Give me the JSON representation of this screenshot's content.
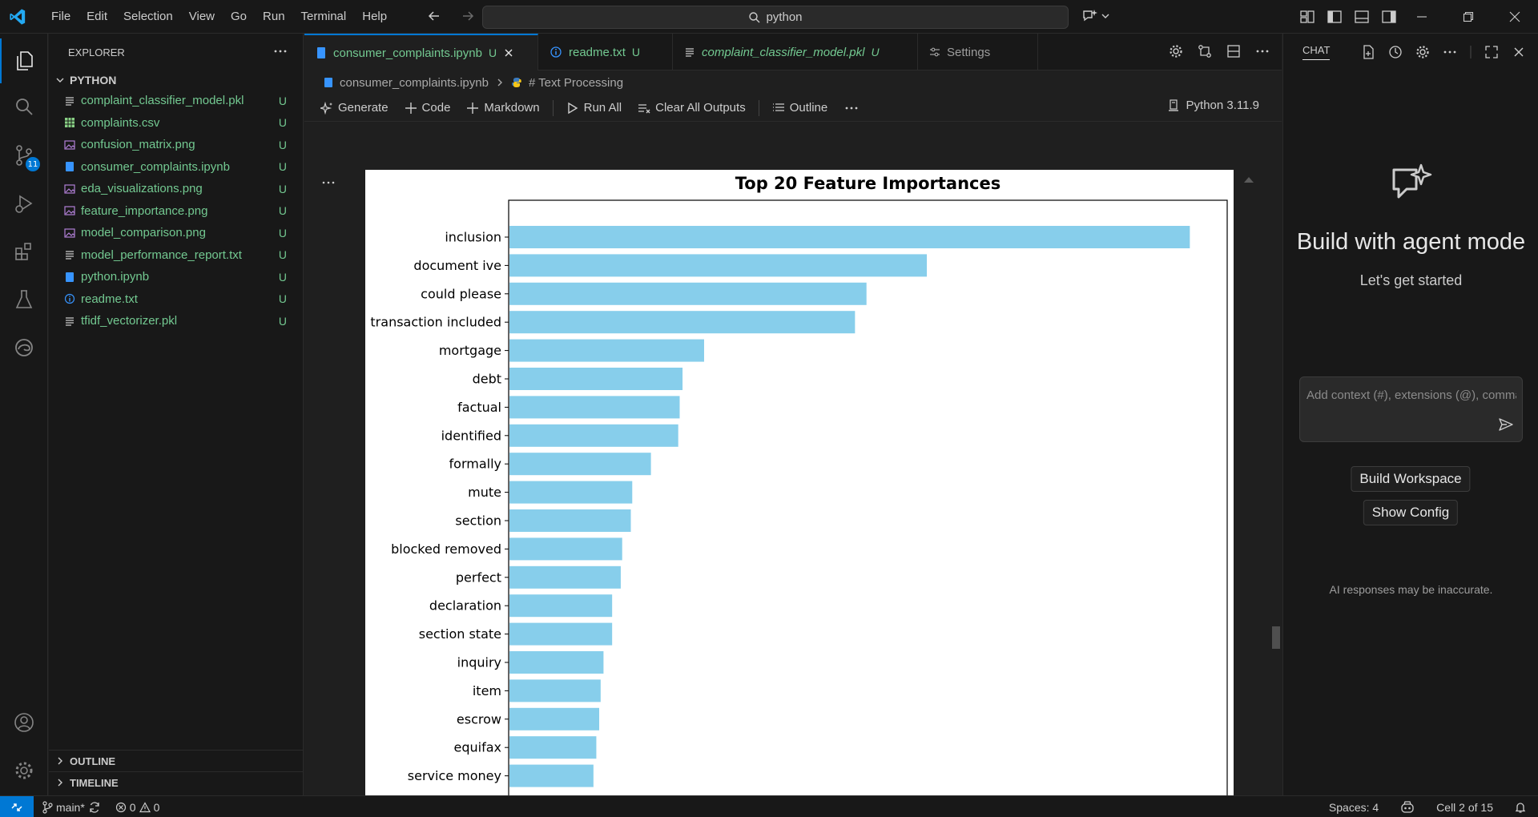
{
  "titlebar": {
    "menu": [
      "File",
      "Edit",
      "Selection",
      "View",
      "Go",
      "Run",
      "Terminal",
      "Help"
    ],
    "search_text": "python"
  },
  "activity": {
    "scm_badge": "11"
  },
  "sidebar": {
    "title": "EXPLORER",
    "folder": "PYTHON",
    "files": [
      {
        "name": "complaint_classifier_model.pkl",
        "status": "U",
        "icon": "file-lines-icon"
      },
      {
        "name": "complaints.csv",
        "status": "U",
        "icon": "table-icon"
      },
      {
        "name": "confusion_matrix.png",
        "status": "U",
        "icon": "image-icon"
      },
      {
        "name": "consumer_complaints.ipynb",
        "status": "U",
        "icon": "notebook-icon"
      },
      {
        "name": "eda_visualizations.png",
        "status": "U",
        "icon": "image-icon"
      },
      {
        "name": "feature_importance.png",
        "status": "U",
        "icon": "image-icon"
      },
      {
        "name": "model_comparison.png",
        "status": "U",
        "icon": "image-icon"
      },
      {
        "name": "model_performance_report.txt",
        "status": "U",
        "icon": "file-lines-icon"
      },
      {
        "name": "python.ipynb",
        "status": "U",
        "icon": "notebook-icon"
      },
      {
        "name": "readme.txt",
        "status": "U",
        "icon": "info-icon"
      },
      {
        "name": "tfidf_vectorizer.pkl",
        "status": "U",
        "icon": "file-lines-icon"
      }
    ],
    "outline_label": "OUTLINE",
    "timeline_label": "TIMELINE"
  },
  "editor": {
    "tabs": [
      {
        "label": "consumer_complaints.ipynb",
        "status": "U",
        "active": true
      },
      {
        "label": "readme.txt",
        "status": "U",
        "active": false
      },
      {
        "label": "complaint_classifier_model.pkl",
        "status": "U",
        "active": false
      },
      {
        "label": "Settings",
        "status": "",
        "active": false
      }
    ],
    "breadcrumb": {
      "file": "consumer_complaints.ipynb",
      "section": "# Text Processing"
    },
    "toolbar": {
      "generate": "Generate",
      "code": "Code",
      "markdown": "Markdown",
      "run_all": "Run All",
      "clear_outputs": "Clear All Outputs",
      "outline": "Outline",
      "kernel": "Python 3.11.9"
    }
  },
  "chart_data": {
    "type": "bar",
    "orientation": "horizontal",
    "title": "Top 20 Feature Importances",
    "categories": [
      "inclusion",
      "document ive",
      "could please",
      "transaction included",
      "mortgage",
      "debt",
      "factual",
      "identified",
      "formally",
      "mute",
      "section",
      "blocked removed",
      "perfect",
      "declaration",
      "section state",
      "inquiry",
      "item",
      "escrow",
      "equifax",
      "service money"
    ],
    "values": [
      0.0474,
      0.0291,
      0.0249,
      0.0241,
      0.0136,
      0.0121,
      0.0119,
      0.0118,
      0.0099,
      0.0086,
      0.0085,
      0.0079,
      0.0078,
      0.0072,
      0.0072,
      0.0066,
      0.0064,
      0.0063,
      0.0061,
      0.0059
    ],
    "xlim": [
      0,
      0.05
    ],
    "xticks": [
      "0.00",
      "0.01",
      "0.02",
      "0.03",
      "0.04"
    ],
    "color": "#87ceeb",
    "grid": false
  },
  "chat": {
    "title": "CHAT",
    "heading": "Build with agent mode",
    "subheading": "Let's get started",
    "input_placeholder": "Add context (#), extensions (@), commands (/)",
    "build_workspace": "Build Workspace",
    "show_config": "Show Config",
    "disclaimer": "AI responses may be inaccurate."
  },
  "statusbar": {
    "branch": "main*",
    "errors": "0",
    "warnings": "0",
    "spaces": "Spaces: 4",
    "cell": "Cell 2 of 15"
  },
  "colors": {
    "accent": "#0078d4",
    "untracked": "#73c991",
    "bar": "#87ceeb"
  }
}
